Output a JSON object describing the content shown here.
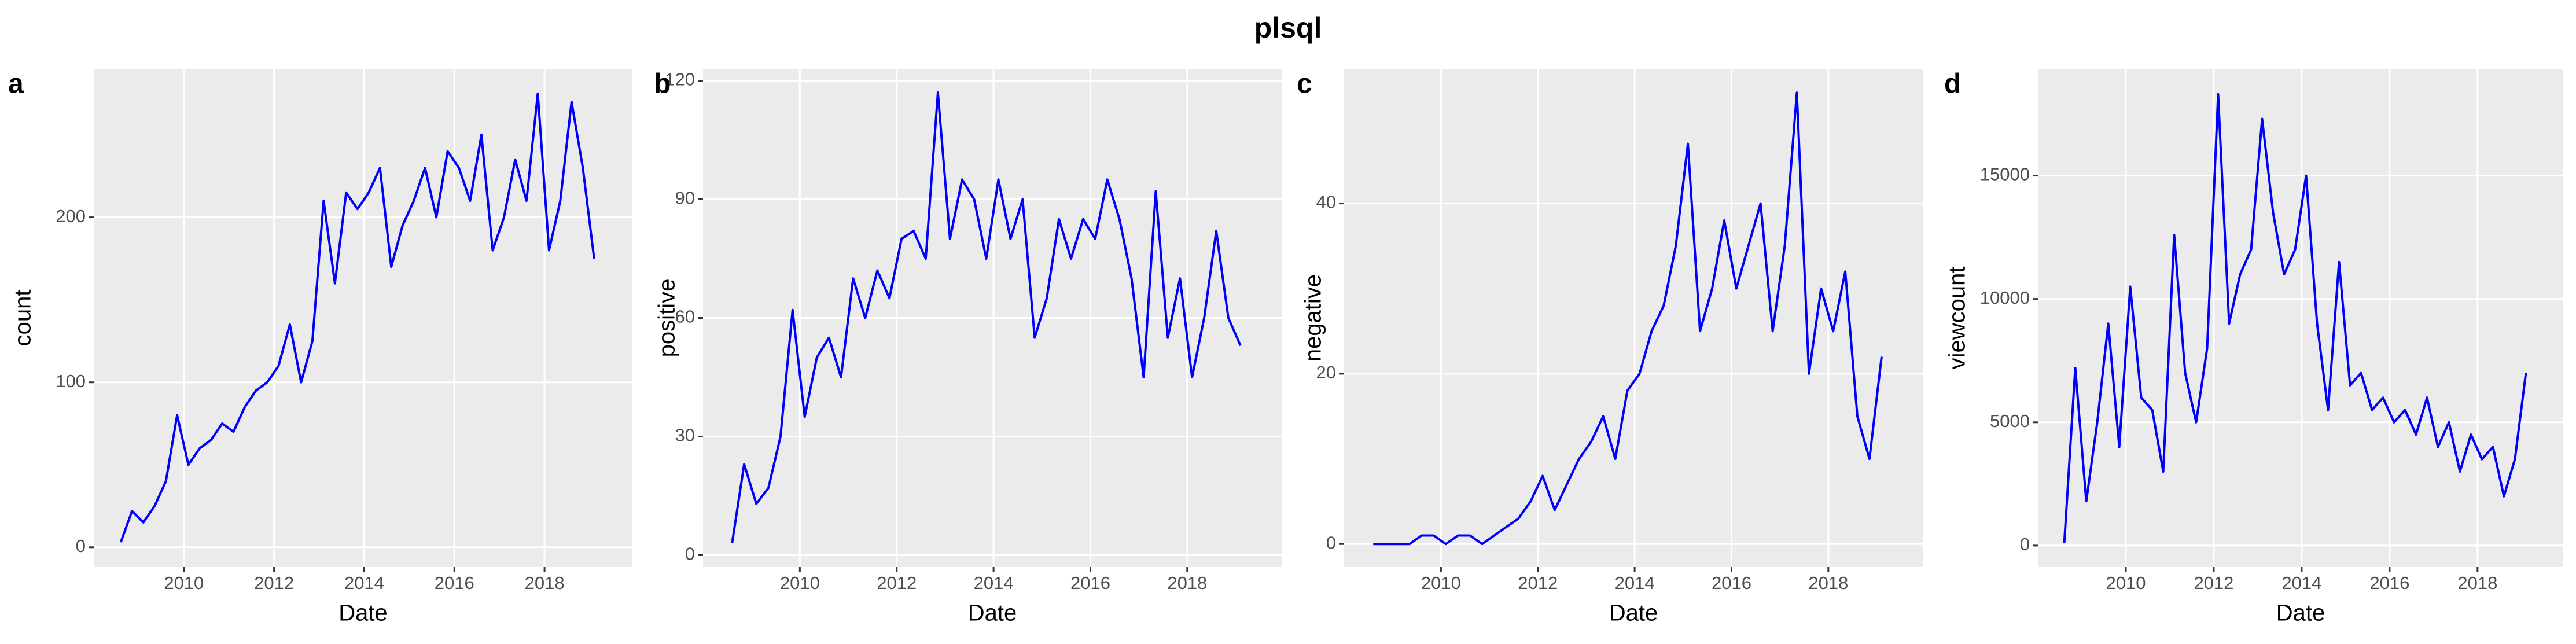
{
  "title": "plsql",
  "chart_data": [
    {
      "type": "line",
      "panel_label": "a",
      "xlabel": "Date",
      "ylabel": "count",
      "x": [
        2008.6,
        2008.85,
        2009.1,
        2009.35,
        2009.6,
        2009.85,
        2010.1,
        2010.35,
        2010.6,
        2010.85,
        2011.1,
        2011.35,
        2011.6,
        2011.85,
        2012.1,
        2012.35,
        2012.6,
        2012.85,
        2013.1,
        2013.35,
        2013.6,
        2013.85,
        2014.1,
        2014.35,
        2014.6,
        2014.85,
        2015.1,
        2015.35,
        2015.6,
        2015.85,
        2016.1,
        2016.35,
        2016.6,
        2016.85,
        2017.1,
        2017.35,
        2017.6,
        2017.85,
        2018.1,
        2018.35,
        2018.6,
        2018.85,
        2019.1
      ],
      "series": [
        {
          "color": "#0000ff",
          "values": [
            3,
            22,
            15,
            25,
            40,
            80,
            50,
            60,
            65,
            75,
            70,
            85,
            95,
            100,
            110,
            135,
            100,
            125,
            210,
            160,
            215,
            205,
            215,
            230,
            170,
            195,
            210,
            230,
            200,
            240,
            230,
            210,
            250,
            180,
            200,
            235,
            210,
            275,
            180,
            210,
            270,
            230,
            175
          ]
        }
      ],
      "xlim": [
        2008.0,
        2019.95
      ],
      "ylim": [
        -12,
        290
      ],
      "xticks": [
        2010,
        2012,
        2014,
        2016,
        2018
      ],
      "yticks": [
        0,
        100,
        200
      ],
      "grid": true
    },
    {
      "type": "line",
      "panel_label": "b",
      "xlabel": "Date",
      "ylabel": "positive",
      "x": [
        2008.6,
        2008.85,
        2009.1,
        2009.35,
        2009.6,
        2009.85,
        2010.1,
        2010.35,
        2010.6,
        2010.85,
        2011.1,
        2011.35,
        2011.6,
        2011.85,
        2012.1,
        2012.35,
        2012.6,
        2012.85,
        2013.1,
        2013.35,
        2013.6,
        2013.85,
        2014.1,
        2014.35,
        2014.6,
        2014.85,
        2015.1,
        2015.35,
        2015.6,
        2015.85,
        2016.1,
        2016.35,
        2016.6,
        2016.85,
        2017.1,
        2017.35,
        2017.6,
        2017.85,
        2018.1,
        2018.35,
        2018.6,
        2018.85,
        2019.1
      ],
      "series": [
        {
          "color": "#0000ff",
          "values": [
            3,
            23,
            13,
            17,
            30,
            62,
            35,
            50,
            55,
            45,
            70,
            60,
            72,
            65,
            80,
            82,
            75,
            117,
            80,
            95,
            90,
            75,
            95,
            80,
            90,
            55,
            65,
            85,
            75,
            85,
            80,
            95,
            85,
            70,
            45,
            92,
            55,
            70,
            45,
            60,
            82,
            60,
            53
          ]
        }
      ],
      "xlim": [
        2008.0,
        2019.95
      ],
      "ylim": [
        -3,
        123
      ],
      "xticks": [
        2010,
        2012,
        2014,
        2016,
        2018
      ],
      "yticks": [
        0,
        30,
        60,
        90,
        120
      ],
      "grid": true
    },
    {
      "type": "line",
      "panel_label": "c",
      "xlabel": "Date",
      "ylabel": "negative",
      "x": [
        2008.6,
        2008.85,
        2009.1,
        2009.35,
        2009.6,
        2009.85,
        2010.1,
        2010.35,
        2010.6,
        2010.85,
        2011.1,
        2011.35,
        2011.6,
        2011.85,
        2012.1,
        2012.35,
        2012.6,
        2012.85,
        2013.1,
        2013.35,
        2013.6,
        2013.85,
        2014.1,
        2014.35,
        2014.6,
        2014.85,
        2015.1,
        2015.35,
        2015.6,
        2015.85,
        2016.1,
        2016.35,
        2016.6,
        2016.85,
        2017.1,
        2017.35,
        2017.6,
        2017.85,
        2018.1,
        2018.35,
        2018.6,
        2018.85,
        2019.1
      ],
      "series": [
        {
          "color": "#0000ff",
          "values": [
            0,
            0,
            0,
            0,
            1,
            1,
            0,
            1,
            1,
            0,
            1,
            2,
            3,
            5,
            8,
            4,
            7,
            10,
            12,
            15,
            10,
            18,
            20,
            25,
            28,
            35,
            47,
            25,
            30,
            38,
            30,
            35,
            40,
            25,
            35,
            53,
            20,
            30,
            25,
            32,
            15,
            10,
            22
          ]
        }
      ],
      "xlim": [
        2008.0,
        2019.95
      ],
      "ylim": [
        -2.7,
        55.8
      ],
      "xticks": [
        2010,
        2012,
        2014,
        2016,
        2018
      ],
      "yticks": [
        0,
        20,
        40
      ],
      "grid": true
    },
    {
      "type": "line",
      "panel_label": "d",
      "xlabel": "Date",
      "ylabel": "viewcount",
      "x": [
        2008.6,
        2008.85,
        2009.1,
        2009.35,
        2009.6,
        2009.85,
        2010.1,
        2010.35,
        2010.6,
        2010.85,
        2011.1,
        2011.35,
        2011.6,
        2011.85,
        2012.1,
        2012.35,
        2012.6,
        2012.85,
        2013.1,
        2013.35,
        2013.6,
        2013.85,
        2014.1,
        2014.35,
        2014.6,
        2014.85,
        2015.1,
        2015.35,
        2015.6,
        2015.85,
        2016.1,
        2016.35,
        2016.6,
        2016.85,
        2017.1,
        2017.35,
        2017.6,
        2017.85,
        2018.1,
        2018.35,
        2018.6,
        2018.85,
        2019.1
      ],
      "series": [
        {
          "color": "#0000ff",
          "values": [
            100,
            7200,
            1800,
            5000,
            9000,
            4000,
            10500,
            6000,
            5500,
            3000,
            12600,
            7000,
            5000,
            8000,
            18300,
            9000,
            11000,
            12000,
            17300,
            13500,
            11000,
            12000,
            15000,
            9000,
            5500,
            11500,
            6500,
            7000,
            5500,
            6000,
            5000,
            5500,
            4500,
            6000,
            4000,
            5000,
            3000,
            4500,
            3500,
            4000,
            2000,
            3500,
            7000
          ]
        }
      ],
      "xlim": [
        2008.0,
        2019.95
      ],
      "ylim": [
        -870,
        19330
      ],
      "xticks": [
        2010,
        2012,
        2014,
        2016,
        2018
      ],
      "yticks": [
        0,
        5000,
        10000,
        15000
      ],
      "grid": true
    }
  ]
}
